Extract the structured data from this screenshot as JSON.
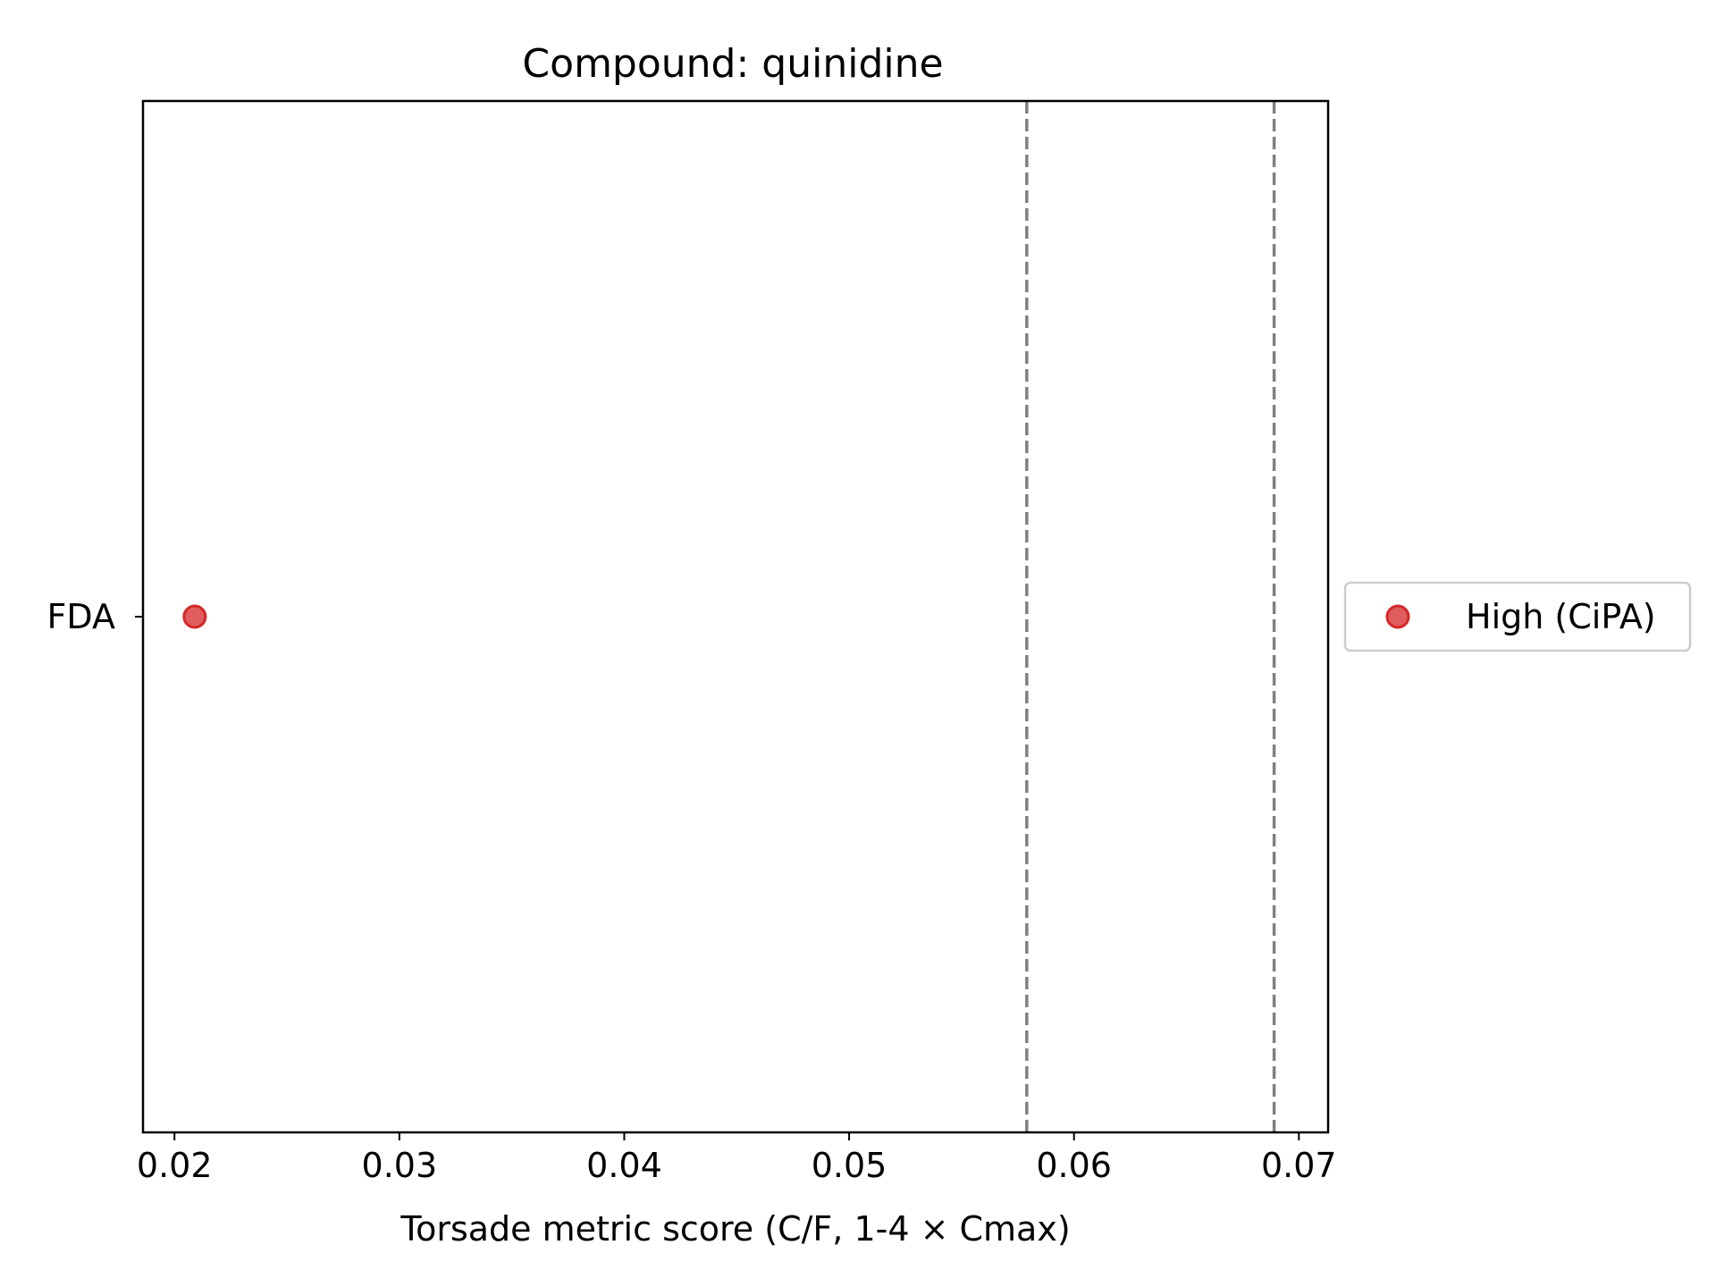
{
  "chart_data": {
    "type": "scatter",
    "title": "Compound: quinidine",
    "xlabel": "Torsade metric score (C/F, 1-4 × Cmax)",
    "ylabel": "",
    "xlim": [
      0.0186,
      0.0713
    ],
    "xticks": [
      0.02,
      0.03,
      0.04,
      0.05,
      0.06,
      0.07
    ],
    "xtick_labels": [
      "0.02",
      "0.03",
      "0.04",
      "0.05",
      "0.06",
      "0.07"
    ],
    "categories": [
      "FDA"
    ],
    "series": [
      {
        "name": "High (CiPA)",
        "color": "#d62728",
        "points": [
          {
            "category": "FDA",
            "x": 0.0209
          }
        ]
      }
    ],
    "reference_lines": [
      {
        "x": 0.0579,
        "style": "dashed",
        "color": "#808080"
      },
      {
        "x": 0.0689,
        "style": "dashed",
        "color": "#808080"
      }
    ],
    "grid": false,
    "legend_position": "outside-right"
  }
}
